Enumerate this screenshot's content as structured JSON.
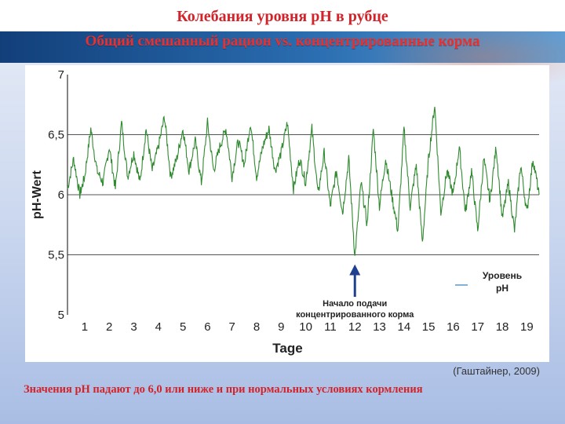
{
  "slide": {
    "title": "Колебания уровня pH в рубце",
    "subtitle": "Общий смешанный рацион vs. концентрированные корма",
    "credit": "(Гаштайнер, 2009)",
    "footnote": "Значения pH падают до 6,0 или ниже и при нормальных условиях кормления"
  },
  "colors": {
    "line": "#2f8a2f",
    "arrow": "#1f3f8f",
    "title": "#d2232a"
  },
  "chart_data": {
    "type": "line",
    "title": "",
    "ylabel": "pH-Wert",
    "xlabel": "Tage",
    "ylim": [
      5,
      7
    ],
    "xlim": [
      0.3,
      19.5
    ],
    "yticks": [
      7,
      6.5,
      6,
      5.5,
      5
    ],
    "ytick_labels": [
      "7",
      "6,5",
      "6",
      "5,5",
      "5"
    ],
    "xticks": [
      1,
      2,
      3,
      4,
      5,
      6,
      7,
      8,
      9,
      10,
      11,
      12,
      13,
      14,
      15,
      16,
      17,
      18,
      19
    ],
    "xtick_labels": [
      "1",
      "2",
      "3",
      "4",
      "5",
      "6",
      "7",
      "8",
      "9",
      "10",
      "11",
      "12",
      "13",
      "14",
      "15",
      "16",
      "17",
      "18",
      "19"
    ],
    "grid": "horizontal at 5.5, 6, 6.5",
    "legend": {
      "label": "Уровень pH",
      "placement": "bottom-right"
    },
    "annotation": {
      "text_lines": [
        "Начало подачи",
        "концентрированного корма"
      ],
      "x": 12
    },
    "series": [
      {
        "name": "Уровень pH",
        "x": [
          0.3,
          0.55,
          0.8,
          1.0,
          1.25,
          1.5,
          1.75,
          2.0,
          2.25,
          2.5,
          2.75,
          3.0,
          3.25,
          3.5,
          3.75,
          4.0,
          4.25,
          4.5,
          4.75,
          5.0,
          5.25,
          5.5,
          5.75,
          6.0,
          6.25,
          6.5,
          6.75,
          7.0,
          7.25,
          7.5,
          7.75,
          8.0,
          8.25,
          8.5,
          8.75,
          9.0,
          9.25,
          9.5,
          9.75,
          10.0,
          10.25,
          10.5,
          10.75,
          11.0,
          11.25,
          11.5,
          11.75,
          12.0,
          12.25,
          12.5,
          12.75,
          13.0,
          13.25,
          13.5,
          13.75,
          14.0,
          14.25,
          14.5,
          14.75,
          15.0,
          15.25,
          15.5,
          15.75,
          16.0,
          16.25,
          16.5,
          16.75,
          17.0,
          17.25,
          17.5,
          17.75,
          18.0,
          18.25,
          18.5,
          18.75,
          19.0,
          19.25,
          19.5
        ],
        "values": [
          6.05,
          6.3,
          6.0,
          6.15,
          6.55,
          6.2,
          6.1,
          6.4,
          6.05,
          6.6,
          6.15,
          6.35,
          6.1,
          6.55,
          6.2,
          6.4,
          6.65,
          6.15,
          6.3,
          6.55,
          6.2,
          6.45,
          6.1,
          6.6,
          6.2,
          6.4,
          6.55,
          6.15,
          6.45,
          6.25,
          6.6,
          6.15,
          6.4,
          6.55,
          6.2,
          6.35,
          6.6,
          6.05,
          6.3,
          6.1,
          6.55,
          6.0,
          6.35,
          5.9,
          6.2,
          5.85,
          6.3,
          5.48,
          6.1,
          5.75,
          6.55,
          5.9,
          6.3,
          6.0,
          5.7,
          6.55,
          5.9,
          6.25,
          5.6,
          6.3,
          6.75,
          5.85,
          6.2,
          6.0,
          6.4,
          5.85,
          6.2,
          5.7,
          6.3,
          5.95,
          6.4,
          5.8,
          6.1,
          5.7,
          6.25,
          5.85,
          6.3,
          6.0
        ]
      }
    ]
  }
}
